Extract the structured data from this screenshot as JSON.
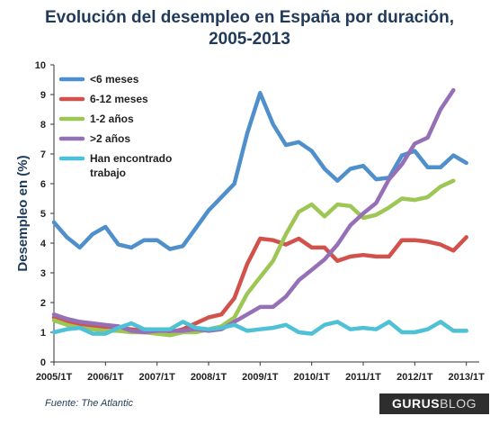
{
  "chart_data": {
    "type": "line",
    "title_lines": [
      "Evolución del desempleo en España por duración,",
      "2005-2013"
    ],
    "ylabel": "Desempleo en (%)",
    "xlabel": "",
    "ylim": [
      0,
      10
    ],
    "yticks": [
      0,
      1,
      2,
      3,
      4,
      5,
      6,
      7,
      8,
      9,
      10
    ],
    "x_tick_labels": [
      "2005/1T",
      "2006/1T",
      "2007/1T",
      "2008/1T",
      "2009/1T",
      "2010/1T",
      "2011/1T",
      "2012/1T",
      "2013/1T"
    ],
    "x_tick_positions": [
      0,
      4,
      8,
      12,
      16,
      20,
      24,
      28,
      32
    ],
    "x_range": [
      0,
      33
    ],
    "grid": false,
    "legend_position": "top-left",
    "series": [
      {
        "name": "<6 meses",
        "color": "#4f8fcc",
        "values": [
          4.7,
          4.2,
          3.85,
          4.3,
          4.55,
          3.95,
          3.85,
          4.1,
          4.1,
          3.8,
          3.9,
          4.5,
          5.1,
          5.55,
          6.0,
          7.7,
          9.05,
          8.0,
          7.3,
          7.4,
          7.1,
          6.5,
          6.1,
          6.5,
          6.6,
          6.15,
          6.2,
          6.95,
          7.1,
          6.55,
          6.55,
          6.95,
          6.7
        ]
      },
      {
        "name": "6-12 meses",
        "color": "#d2524b",
        "values": [
          1.5,
          1.35,
          1.25,
          1.2,
          1.15,
          1.15,
          1.1,
          1.05,
          1.05,
          1.0,
          1.1,
          1.3,
          1.5,
          1.6,
          2.15,
          3.3,
          4.15,
          4.1,
          3.95,
          4.15,
          3.85,
          3.85,
          3.4,
          3.55,
          3.6,
          3.55,
          3.55,
          4.1,
          4.1,
          4.05,
          3.95,
          3.75,
          4.2
        ]
      },
      {
        "name": "1-2 años",
        "color": "#9ec655",
        "values": [
          1.4,
          1.25,
          1.15,
          1.1,
          1.05,
          1.05,
          1.0,
          1.0,
          0.95,
          0.9,
          1.0,
          1.0,
          1.1,
          1.2,
          1.5,
          2.3,
          2.85,
          3.4,
          4.3,
          5.05,
          5.3,
          4.9,
          5.3,
          5.25,
          4.85,
          4.95,
          5.2,
          5.5,
          5.45,
          5.55,
          5.9,
          6.1
        ]
      },
      {
        "name": ">2 años",
        "color": "#9670b6",
        "values": [
          1.6,
          1.45,
          1.35,
          1.3,
          1.25,
          1.2,
          1.05,
          1.0,
          1.05,
          1.05,
          1.05,
          1.1,
          1.05,
          1.1,
          1.35,
          1.6,
          1.85,
          1.85,
          2.2,
          2.75,
          3.1,
          3.45,
          3.95,
          4.6,
          5.0,
          5.35,
          6.15,
          6.65,
          7.35,
          7.55,
          8.5,
          9.15
        ]
      },
      {
        "name": "Han encontrado trabajo",
        "color": "#4fc1d6",
        "values": [
          1.0,
          1.1,
          1.15,
          0.95,
          0.95,
          1.15,
          1.3,
          1.1,
          1.1,
          1.1,
          1.35,
          1.15,
          1.1,
          1.15,
          1.25,
          1.05,
          1.1,
          1.15,
          1.25,
          1.0,
          0.95,
          1.25,
          1.35,
          1.1,
          1.15,
          1.1,
          1.35,
          1.0,
          1.0,
          1.1,
          1.35,
          1.05,
          1.05
        ]
      }
    ],
    "legend_labels": [
      {
        "series": 0,
        "lines": [
          "<6 meses"
        ]
      },
      {
        "series": 1,
        "lines": [
          "6-12 meses"
        ]
      },
      {
        "series": 2,
        "lines": [
          "1-2 años"
        ]
      },
      {
        "series": 3,
        "lines": [
          ">2 años"
        ]
      },
      {
        "series": 4,
        "lines": [
          "Han encontrado",
          "trabajo"
        ]
      }
    ]
  },
  "footer": {
    "source": "Fuente: The Atlantic",
    "brand_part1": "GURUS",
    "brand_part2": "BLOG"
  }
}
